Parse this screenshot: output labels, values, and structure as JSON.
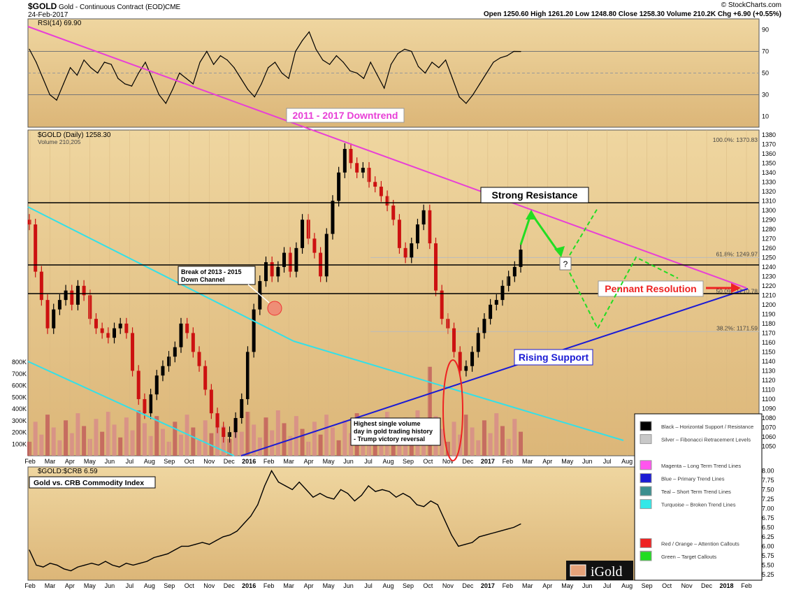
{
  "header": {
    "symbol": "$GOLD",
    "description": "Gold - Continuous Contract (EOD)",
    "exchange": "CME",
    "date": "24-Feb-2017",
    "watermark": "© StockCharts.com",
    "ohlc": "Open 1250.60   High 1261.20   Low 1248.80   Close 1258.30   Volume 210.2K   Chg +6.90 (+0.55%)"
  },
  "colors": {
    "background": "#e9c98c",
    "magenta": "#e83fd6",
    "blue": "#1b1bd4",
    "turquoise": "#33e0e8",
    "green": "#22dd22",
    "red": "#ee2222",
    "candle_up": "#000000",
    "candle_down": "#cc1111"
  },
  "chart_data": [
    {
      "type": "line",
      "panel": "RSI",
      "title": "RSI(14) 69.90",
      "ylim": [
        0,
        100
      ],
      "yticks": [
        10,
        30,
        50,
        70,
        90
      ],
      "reference_lines": [
        30,
        70
      ],
      "x_start": "2015-02",
      "x_end": "2017-02-24",
      "values": [
        72,
        60,
        45,
        30,
        25,
        40,
        55,
        48,
        62,
        55,
        50,
        60,
        58,
        45,
        40,
        38,
        50,
        60,
        45,
        30,
        22,
        35,
        50,
        45,
        40,
        60,
        70,
        58,
        66,
        62,
        55,
        45,
        35,
        28,
        40,
        55,
        60,
        50,
        45,
        70,
        80,
        88,
        72,
        62,
        58,
        66,
        60,
        52,
        50,
        45,
        60,
        48,
        36,
        58,
        68,
        72,
        70,
        56,
        50,
        60,
        55,
        62,
        45,
        28,
        22,
        30,
        40,
        50,
        60,
        64,
        66,
        70,
        69.9
      ]
    },
    {
      "type": "candlestick",
      "panel": "price",
      "title": "$GOLD (Daily) 1258.30",
      "subtitle": "Volume 210,205",
      "ylim": [
        1040,
        1385
      ],
      "yticks": [
        1050,
        1060,
        1070,
        1080,
        1090,
        1100,
        1110,
        1120,
        1130,
        1140,
        1150,
        1160,
        1170,
        1180,
        1190,
        1200,
        1210,
        1220,
        1230,
        1240,
        1250,
        1260,
        1270,
        1280,
        1290,
        1300,
        1310,
        1320,
        1330,
        1340,
        1350,
        1360,
        1370,
        1380
      ],
      "x_start": "2015-02",
      "x_end": "2017-02-24",
      "close": [
        1285,
        1235,
        1205,
        1175,
        1195,
        1205,
        1215,
        1200,
        1220,
        1210,
        1185,
        1175,
        1170,
        1165,
        1175,
        1180,
        1170,
        1130,
        1100,
        1085,
        1105,
        1125,
        1135,
        1145,
        1155,
        1180,
        1170,
        1150,
        1135,
        1110,
        1085,
        1070,
        1060,
        1065,
        1080,
        1100,
        1150,
        1195,
        1225,
        1245,
        1230,
        1240,
        1255,
        1235,
        1260,
        1290,
        1270,
        1255,
        1230,
        1275,
        1310,
        1340,
        1365,
        1350,
        1340,
        1345,
        1330,
        1325,
        1315,
        1305,
        1290,
        1260,
        1250,
        1265,
        1285,
        1300,
        1265,
        1215,
        1185,
        1175,
        1150,
        1130,
        1135,
        1150,
        1170,
        1185,
        1200,
        1205,
        1220,
        1230,
        1240,
        1258.3
      ],
      "volume_axis": [
        "100K",
        "200K",
        "300K",
        "400K",
        "500K",
        "600K",
        "700K",
        "800K"
      ],
      "volume_max": 800000,
      "volume_spike_index": 66,
      "horizontal_lines": [
        1310,
        1245,
        1215
      ],
      "fibonacci": [
        {
          "label": "100.0%: 1370.83",
          "value": 1370.83
        },
        {
          "label": "61.8%: 1249.97",
          "value": 1249.97
        },
        {
          "label": "50.0%: 1210.78",
          "value": 1210.78
        },
        {
          "label": "38.2%: 1171.59",
          "value": 1171.59
        }
      ]
    },
    {
      "type": "line",
      "panel": "ratio",
      "title": "$GOLD:$CRB 6.59",
      "ylim": [
        5.1,
        8.1
      ],
      "yticks": [
        5.25,
        5.5,
        5.75,
        6.0,
        6.25,
        6.5,
        6.75,
        7.0,
        7.25,
        7.5,
        7.75,
        8.0
      ],
      "x_start": "2015-02",
      "x_end": "2017-02-24",
      "values": [
        5.9,
        5.5,
        5.45,
        5.55,
        5.5,
        5.4,
        5.35,
        5.45,
        5.5,
        5.55,
        5.5,
        5.6,
        5.5,
        5.45,
        5.55,
        5.5,
        5.55,
        5.6,
        5.7,
        5.75,
        5.8,
        5.9,
        6.0,
        6.0,
        6.05,
        6.1,
        6.05,
        6.15,
        6.25,
        6.3,
        6.4,
        6.6,
        6.8,
        7.1,
        7.6,
        8.0,
        7.7,
        7.6,
        7.5,
        7.7,
        7.5,
        7.3,
        7.4,
        7.3,
        7.25,
        7.5,
        7.4,
        7.2,
        7.35,
        7.6,
        7.45,
        7.5,
        7.45,
        7.3,
        7.4,
        7.3,
        7.1,
        7.05,
        7.2,
        7.1,
        6.7,
        6.3,
        6.0,
        6.05,
        6.1,
        6.25,
        6.3,
        6.35,
        6.4,
        6.45,
        6.5,
        6.59
      ]
    }
  ],
  "price_panel": {
    "heading": "$GOLD (Daily) 1258.30",
    "volume": "Volume 210,205"
  },
  "rsi_panel": {
    "heading": "RSI(14) 69.90"
  },
  "ratio_panel": {
    "heading": "$GOLD:$CRB 6.59",
    "label": "Gold vs. CRB Commodity Index"
  },
  "x_axis": {
    "months": [
      "Feb",
      "Mar",
      "Apr",
      "May",
      "Jun",
      "Jul",
      "Aug",
      "Sep",
      "Oct",
      "Nov",
      "Dec",
      "2016",
      "Feb",
      "Mar",
      "Apr",
      "May",
      "Jun",
      "Jul",
      "Aug",
      "Sep",
      "Oct",
      "Nov",
      "Dec",
      "2017",
      "Feb",
      "Mar",
      "Apr",
      "May",
      "Jun",
      "Jul",
      "Aug",
      "Sep",
      "Oct",
      "Nov",
      "Dec",
      "2018",
      "Feb"
    ],
    "bold": [
      "2016",
      "2017",
      "2018"
    ]
  },
  "annotations": {
    "downtrend": "2011 - 2017 Downtrend",
    "resistance": "Strong Resistance",
    "rising_support": "Rising Support",
    "pennant": "Pennant Resolution",
    "break_channel_line1": "Break of 2013 - 2015",
    "break_channel_line2": "Down Channel",
    "volume_line1": "Highest single volume",
    "volume_line2": "day in gold trading history",
    "volume_line3": "- Trump victory reversal",
    "question": "?"
  },
  "legend": {
    "items": [
      {
        "label": "Black – Horizontal Support / Resistance",
        "color": "#000000"
      },
      {
        "label": "Silver – Fibonacci Retracement Levels",
        "color": "#c8c8c8"
      },
      {
        "label": "",
        "color": ""
      },
      {
        "label": "Magenta – Long Term Trend Lines",
        "color": "#ff55ee"
      },
      {
        "label": "Blue – Primary Trend Lines",
        "color": "#1b1bd4"
      },
      {
        "label": "Teal – Short Term Trend Lines",
        "color": "#3b8f8f"
      },
      {
        "label": "Turquoise – Broken Trend Lines",
        "color": "#33e8e8"
      },
      {
        "label": "",
        "color": ""
      },
      {
        "label": "",
        "color": ""
      },
      {
        "label": "Red / Orange – Attention Callouts",
        "color": "#ee2222",
        "color2": "#ff8c00"
      },
      {
        "label": "Green – Target Callouts",
        "color": "#22dd22"
      }
    ]
  },
  "logo": {
    "text": "iGold"
  }
}
